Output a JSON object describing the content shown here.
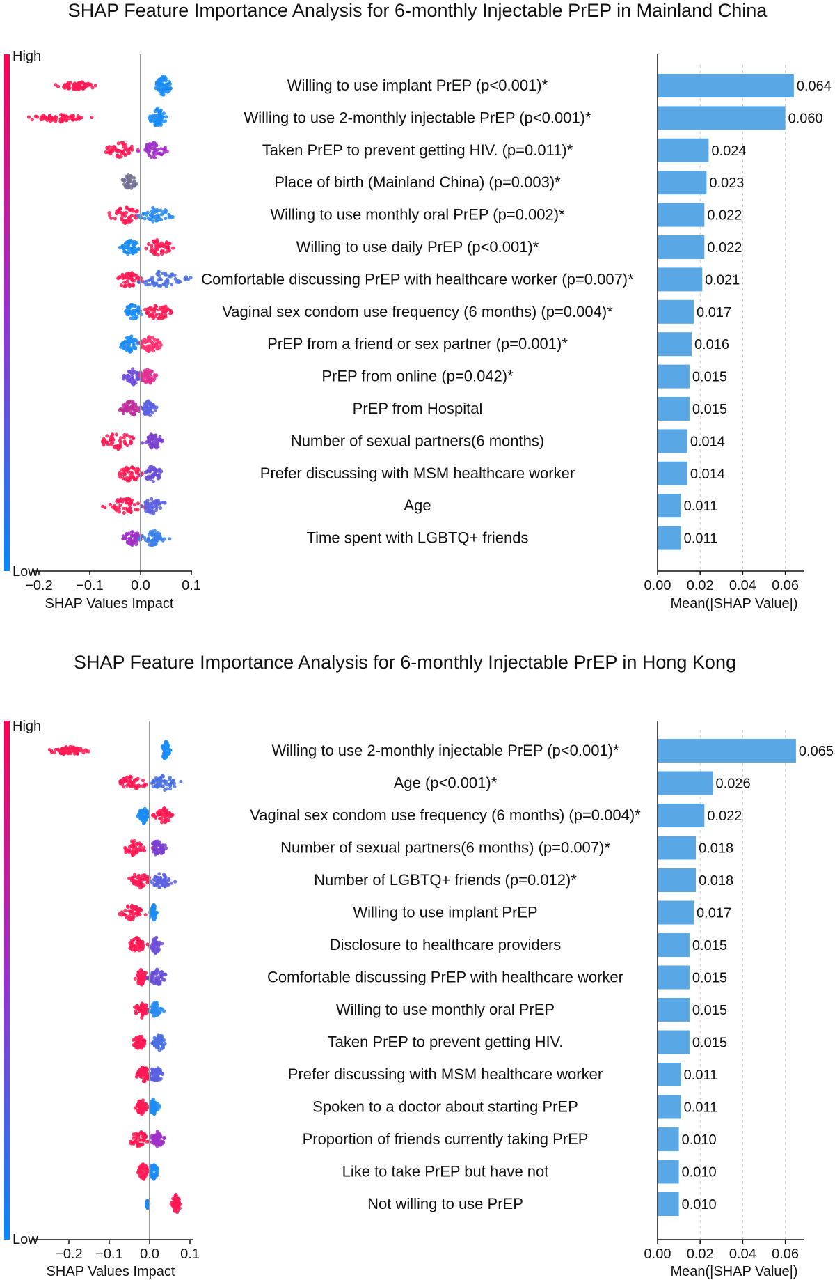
{
  "chart_data": [
    {
      "type": "bar",
      "title": "SHAP Feature Importance Analysis for 6-monthly Injectable PrEP in Mainland China",
      "colorbar": {
        "high_label": "High",
        "low_label": "Low",
        "high_color": "#ff0052",
        "low_color": "#008bfb"
      },
      "beeswarm": {
        "xlabel": "SHAP Values Impact",
        "xlim": [
          -0.25,
          0.1
        ],
        "ticks": [
          -0.2,
          -0.1,
          0.0,
          0.1
        ],
        "tick_labels": [
          "−0.2",
          "−0.1",
          "0.0",
          "0.1"
        ]
      },
      "bar": {
        "xlabel": "Mean(|SHAP Value|)",
        "xlim": [
          0,
          0.0635
        ],
        "ticks": [
          0.0,
          0.02,
          0.04,
          0.06
        ],
        "tick_labels": [
          "0.00",
          "0.02",
          "0.04",
          "0.06"
        ],
        "color": "#5aa7e6"
      },
      "categories": [
        "Willing to use implant PrEP (p<0.001)*",
        "Willing to use 2-monthly injectable PrEP (p<0.001)*",
        "Taken PrEP to prevent getting HIV. (p=0.011)*",
        "Place of birth (Mainland China) (p=0.003)*",
        "Willing to use monthly oral PrEP (p=0.002)*",
        "Willing to use daily PrEP (p<0.001)*",
        "Comfortable discussing PrEP with healthcare worker (p=0.007)*",
        "Vaginal sex condom use frequency (6 months) (p=0.004)*",
        "PrEP from a friend or sex partner (p=0.001)*",
        "PrEP from online (p=0.042)*",
        "PrEP from Hospital",
        "Number of sexual partners(6 months)",
        "Prefer discussing with MSM healthcare worker",
        "Age",
        "Time spent with LGBTQ+ friends"
      ],
      "values": [
        0.064,
        0.06,
        0.024,
        0.023,
        0.022,
        0.022,
        0.021,
        0.017,
        0.016,
        0.015,
        0.015,
        0.014,
        0.014,
        0.011,
        0.011
      ],
      "value_labels": [
        "0.064",
        "0.060",
        "0.024",
        "0.023",
        "0.022",
        "0.022",
        "0.021",
        "0.017",
        "0.016",
        "0.015",
        "0.015",
        "0.014",
        "0.014",
        "0.011",
        "0.011"
      ],
      "swarm": [
        {
          "kind": "binary",
          "main": {
            "c": -0.125,
            "w": 0.055,
            "color": "#ff1a55"
          },
          "other": {
            "c": 0.045,
            "w": 0.022,
            "color": "#1a8cf5"
          }
        },
        {
          "kind": "binary",
          "main": {
            "c": -0.165,
            "w": 0.075,
            "color": "#ff1a55"
          },
          "other": {
            "c": 0.035,
            "w": 0.02,
            "color": "#1a8cf5"
          }
        },
        {
          "kind": "split",
          "neg": {
            "c": -0.04,
            "w": 0.04,
            "color": "#ff1a55"
          },
          "pos": {
            "c": 0.025,
            "w": 0.035,
            "color": "#a030c8"
          }
        },
        {
          "kind": "single",
          "c": -0.022,
          "w": 0.02,
          "color": "#707090"
        },
        {
          "kind": "split",
          "neg": {
            "c": -0.03,
            "w": 0.045,
            "color": "#ff1a55"
          },
          "pos": {
            "c": 0.03,
            "w": 0.05,
            "color": "#2a8cf0"
          }
        },
        {
          "kind": "split",
          "neg": {
            "c": -0.02,
            "w": 0.025,
            "color": "#1a8cf5"
          },
          "pos": {
            "c": 0.035,
            "w": 0.04,
            "color": "#ff1a55"
          }
        },
        {
          "kind": "split",
          "neg": {
            "c": -0.025,
            "w": 0.04,
            "color": "#ff1a55"
          },
          "pos": {
            "c": 0.04,
            "w": 0.07,
            "color": "#4a70e0"
          }
        },
        {
          "kind": "split",
          "neg": {
            "c": -0.015,
            "w": 0.025,
            "color": "#1a8cf5"
          },
          "pos": {
            "c": 0.035,
            "w": 0.04,
            "color": "#ff1a55"
          }
        },
        {
          "kind": "split",
          "neg": {
            "c": -0.02,
            "w": 0.03,
            "color": "#1a8cf5"
          },
          "pos": {
            "c": 0.02,
            "w": 0.03,
            "color": "#ff3070"
          }
        },
        {
          "kind": "split",
          "neg": {
            "c": -0.015,
            "w": 0.03,
            "color": "#7050d8"
          },
          "pos": {
            "c": 0.015,
            "w": 0.02,
            "color": "#e03090"
          }
        },
        {
          "kind": "split",
          "neg": {
            "c": -0.02,
            "w": 0.03,
            "color": "#c02a9a"
          },
          "pos": {
            "c": 0.015,
            "w": 0.02,
            "color": "#5a60e0"
          }
        },
        {
          "kind": "split",
          "neg": {
            "c": -0.045,
            "w": 0.06,
            "color": "#ff1a55"
          },
          "pos": {
            "c": 0.025,
            "w": 0.03,
            "color": "#7a40d0"
          }
        },
        {
          "kind": "split",
          "neg": {
            "c": -0.02,
            "w": 0.035,
            "color": "#ff1a55"
          },
          "pos": {
            "c": 0.025,
            "w": 0.03,
            "color": "#6a50d8"
          }
        },
        {
          "kind": "split",
          "neg": {
            "c": -0.03,
            "w": 0.05,
            "color": "#ff1a55"
          },
          "pos": {
            "c": 0.025,
            "w": 0.035,
            "color": "#5a60e0"
          }
        },
        {
          "kind": "split",
          "neg": {
            "c": -0.015,
            "w": 0.025,
            "color": "#a030c8"
          },
          "pos": {
            "c": 0.025,
            "w": 0.035,
            "color": "#3a80ea"
          }
        }
      ]
    },
    {
      "type": "bar",
      "title": "SHAP Feature Importance Analysis for 6-monthly Injectable PrEP in Hong Kong",
      "colorbar": {
        "high_label": "High",
        "low_label": "Low",
        "high_color": "#ff0052",
        "low_color": "#008bfb"
      },
      "beeswarm": {
        "xlabel": "SHAP Values Impact",
        "xlim": [
          -0.27,
          0.1
        ],
        "ticks": [
          -0.2,
          -0.1,
          0.0,
          0.1
        ],
        "tick_labels": [
          "−0.2",
          "−0.1",
          "0.0",
          "0.1"
        ]
      },
      "bar": {
        "xlabel": "Mean(|SHAP Value|)",
        "xlim": [
          0,
          0.0635
        ],
        "ticks": [
          0.0,
          0.02,
          0.04,
          0.06
        ],
        "tick_labels": [
          "0.00",
          "0.02",
          "0.04",
          "0.06"
        ],
        "color": "#5aa7e6"
      },
      "categories": [
        "Willing to use 2-monthly injectable PrEP (p<0.001)*",
        "Age (p<0.001)*",
        "Vaginal sex condom use frequency (6 months) (p=0.004)*",
        "Number of sexual partners(6 months) (p=0.007)*",
        "Number of LGBTQ+ friends (p=0.012)*",
        "Willing to use implant PrEP",
        "Disclosure to healthcare providers",
        "Comfortable discussing PrEP with healthcare worker",
        "Willing to use monthly oral PrEP",
        "Taken PrEP to prevent getting HIV.",
        "Prefer discussing with MSM healthcare worker",
        "Spoken to a doctor about starting PrEP",
        "Proportion of friends currently taking PrEP",
        "Like to take PrEP but have not",
        "Not willing to use PrEP"
      ],
      "values": [
        0.065,
        0.026,
        0.022,
        0.018,
        0.018,
        0.017,
        0.015,
        0.015,
        0.015,
        0.015,
        0.011,
        0.011,
        0.01,
        0.01,
        0.01
      ],
      "value_labels": [
        "0.065",
        "0.026",
        "0.022",
        "0.018",
        "0.018",
        "0.017",
        "0.015",
        "0.015",
        "0.015",
        "0.015",
        "0.011",
        "0.011",
        "0.010",
        "0.010",
        "0.010"
      ],
      "swarm": [
        {
          "kind": "binary",
          "main": {
            "c": -0.2,
            "w": 0.065,
            "color": "#ff1a55"
          },
          "other": {
            "c": 0.04,
            "w": 0.015,
            "color": "#1a8cf5"
          }
        },
        {
          "kind": "split",
          "neg": {
            "c": -0.04,
            "w": 0.05,
            "color": "#ff1a55"
          },
          "pos": {
            "c": 0.035,
            "w": 0.05,
            "color": "#4a70e0"
          }
        },
        {
          "kind": "split",
          "neg": {
            "c": -0.015,
            "w": 0.02,
            "color": "#1a8cf5"
          },
          "pos": {
            "c": 0.035,
            "w": 0.03,
            "color": "#ff1a55"
          }
        },
        {
          "kind": "split",
          "neg": {
            "c": -0.04,
            "w": 0.05,
            "color": "#ff1a55"
          },
          "pos": {
            "c": 0.02,
            "w": 0.03,
            "color": "#7a40d0"
          }
        },
        {
          "kind": "split",
          "neg": {
            "c": -0.025,
            "w": 0.035,
            "color": "#ff1a55"
          },
          "pos": {
            "c": 0.03,
            "w": 0.04,
            "color": "#5a60e0"
          }
        },
        {
          "kind": "split",
          "neg": {
            "c": -0.045,
            "w": 0.045,
            "color": "#ff1a55"
          },
          "pos": {
            "c": 0.01,
            "w": 0.01,
            "color": "#1a8cf5"
          }
        },
        {
          "kind": "split",
          "neg": {
            "c": -0.03,
            "w": 0.03,
            "color": "#ff1a55"
          },
          "pos": {
            "c": 0.015,
            "w": 0.02,
            "color": "#7050d8"
          }
        },
        {
          "kind": "split",
          "neg": {
            "c": -0.02,
            "w": 0.025,
            "color": "#ff1a55"
          },
          "pos": {
            "c": 0.02,
            "w": 0.03,
            "color": "#6a50d8"
          }
        },
        {
          "kind": "split",
          "neg": {
            "c": -0.02,
            "w": 0.025,
            "color": "#ff1a55"
          },
          "pos": {
            "c": 0.015,
            "w": 0.025,
            "color": "#2a8cf0"
          }
        },
        {
          "kind": "split",
          "neg": {
            "c": -0.025,
            "w": 0.025,
            "color": "#ff1a55"
          },
          "pos": {
            "c": 0.025,
            "w": 0.025,
            "color": "#4a70e0"
          }
        },
        {
          "kind": "split",
          "neg": {
            "c": -0.015,
            "w": 0.025,
            "color": "#ff1a55"
          },
          "pos": {
            "c": 0.015,
            "w": 0.025,
            "color": "#5a60e0"
          }
        },
        {
          "kind": "split",
          "neg": {
            "c": -0.02,
            "w": 0.02,
            "color": "#ff1a55"
          },
          "pos": {
            "c": 0.01,
            "w": 0.015,
            "color": "#1a8cf5"
          }
        },
        {
          "kind": "split",
          "neg": {
            "c": -0.025,
            "w": 0.04,
            "color": "#ff1a55"
          },
          "pos": {
            "c": 0.02,
            "w": 0.025,
            "color": "#a030c8"
          }
        },
        {
          "kind": "split",
          "neg": {
            "c": -0.015,
            "w": 0.02,
            "color": "#ff1a55"
          },
          "pos": {
            "c": 0.01,
            "w": 0.015,
            "color": "#1a8cf5"
          }
        },
        {
          "kind": "binary",
          "main": {
            "c": -0.005,
            "w": 0.004,
            "color": "#1a8cf5"
          },
          "other": {
            "c": 0.065,
            "w": 0.015,
            "color": "#ff1a55"
          }
        }
      ]
    }
  ]
}
